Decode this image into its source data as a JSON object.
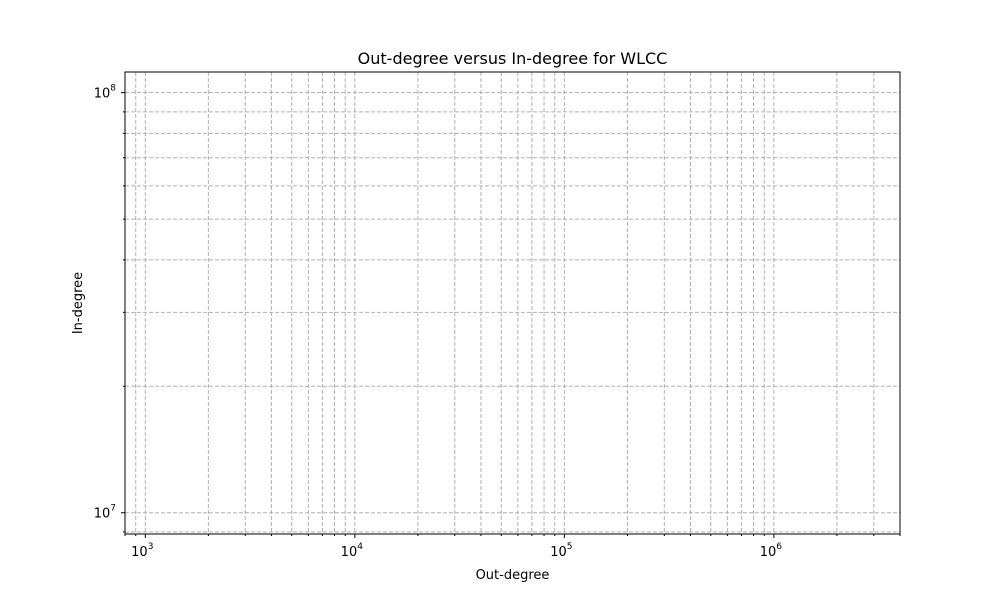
{
  "chart_data": {
    "type": "scatter",
    "title": "Out-degree versus In-degree for WLCC",
    "xlabel": "Out-degree",
    "ylabel": "In-degree",
    "xscale": "log",
    "yscale": "log",
    "xlim": [
      800,
      4000000
    ],
    "ylim": [
      8900000,
      112000000
    ],
    "x_ticks": [
      {
        "base": "10",
        "exp": "3",
        "value": 1000
      },
      {
        "base": "10",
        "exp": "4",
        "value": 10000
      },
      {
        "base": "10",
        "exp": "5",
        "value": 100000
      },
      {
        "base": "10",
        "exp": "6",
        "value": 1000000
      }
    ],
    "y_ticks": [
      {
        "base": "10",
        "exp": "7",
        "value": 10000000
      },
      {
        "base": "10",
        "exp": "8",
        "value": 100000000
      }
    ],
    "grid": true,
    "grid_which": "both",
    "series": []
  },
  "colors": {
    "grid": "#b0b0b0",
    "axes": "#000000",
    "background": "#ffffff"
  }
}
